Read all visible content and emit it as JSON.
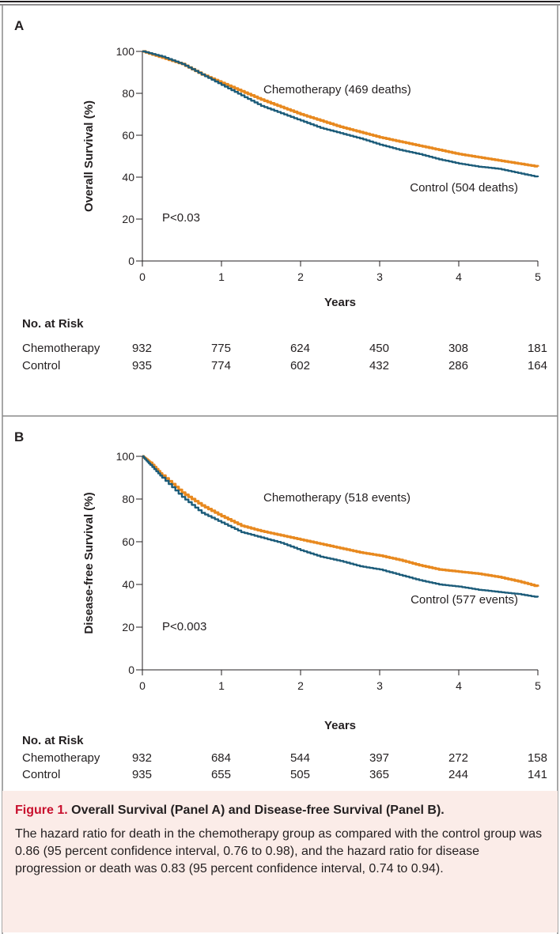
{
  "chart_data": [
    {
      "type": "line",
      "panel_label": "A",
      "ylabel": "Overall Survival (%)",
      "xlabel": "Years",
      "xlim": [
        0,
        5
      ],
      "ylim": [
        0,
        100
      ],
      "xticks": [
        0,
        1,
        2,
        3,
        4,
        5
      ],
      "yticks": [
        0,
        20,
        40,
        60,
        80,
        100
      ],
      "grid": false,
      "annotation": "P<0.03",
      "series": [
        {
          "name": "Chemotherapy (469 deaths)",
          "color": "#e8891f",
          "x": [
            0,
            0.25,
            0.5,
            0.75,
            1,
            1.25,
            1.5,
            1.75,
            2,
            2.25,
            2.5,
            2.75,
            3,
            3.25,
            3.5,
            3.75,
            4,
            4.25,
            4.5,
            4.75,
            5
          ],
          "y": [
            100,
            97,
            94,
            89,
            85,
            81,
            77,
            73.5,
            70,
            67,
            64,
            61.5,
            59,
            57,
            55,
            53,
            51,
            49.5,
            48,
            46.5,
            45
          ]
        },
        {
          "name": "Control (504 deaths)",
          "color": "#1c5c7a",
          "x": [
            0,
            0.25,
            0.5,
            0.75,
            1,
            1.25,
            1.5,
            1.75,
            2,
            2.25,
            2.5,
            2.75,
            3,
            3.25,
            3.5,
            3.75,
            4,
            4.25,
            4.5,
            4.75,
            5
          ],
          "y": [
            100,
            97.5,
            94,
            89,
            84,
            79,
            74,
            70.5,
            67,
            63.5,
            61,
            58.5,
            55.5,
            53,
            51,
            48.5,
            46.5,
            45,
            44,
            42,
            40
          ]
        }
      ],
      "at_risk": {
        "title": "No. at Risk",
        "rows": [
          {
            "label": "Chemotherapy",
            "values": [
              "932",
              "775",
              "624",
              "450",
              "308",
              "181"
            ]
          },
          {
            "label": "Control",
            "values": [
              "935",
              "774",
              "602",
              "432",
              "286",
              "164"
            ]
          }
        ]
      }
    },
    {
      "type": "line",
      "panel_label": "B",
      "ylabel": "Disease-free Survival (%)",
      "xlabel": "Years",
      "xlim": [
        0,
        5
      ],
      "ylim": [
        0,
        100
      ],
      "xticks": [
        0,
        1,
        2,
        3,
        4,
        5
      ],
      "yticks": [
        0,
        20,
        40,
        60,
        80,
        100
      ],
      "grid": false,
      "annotation": "P<0.003",
      "series": [
        {
          "name": "Chemotherapy (518 events)",
          "color": "#e8891f",
          "x": [
            0,
            0.1,
            0.25,
            0.5,
            0.75,
            1,
            1.25,
            1.5,
            1.75,
            2,
            2.25,
            2.5,
            2.75,
            3,
            3.25,
            3.5,
            3.75,
            4,
            4.25,
            4.5,
            4.75,
            5
          ],
          "y": [
            100,
            97,
            91,
            83,
            77,
            72,
            67.5,
            65,
            63,
            61,
            59,
            57,
            55,
            53.5,
            51.5,
            49,
            47,
            46,
            45,
            43.5,
            41.5,
            39
          ]
        },
        {
          "name": "Control (577 events)",
          "color": "#1c5c7a",
          "x": [
            0,
            0.1,
            0.25,
            0.5,
            0.75,
            1,
            1.25,
            1.5,
            1.75,
            2,
            2.25,
            2.5,
            2.75,
            3,
            3.25,
            3.5,
            3.75,
            4,
            4.25,
            4.5,
            4.75,
            5
          ],
          "y": [
            100,
            96,
            90,
            81,
            73.5,
            69,
            64.5,
            62,
            59.5,
            56,
            53,
            51,
            48.5,
            47,
            44.5,
            42,
            40,
            39,
            37.5,
            36.5,
            35.5,
            34
          ]
        }
      ],
      "at_risk": {
        "title": "No. at Risk",
        "rows": [
          {
            "label": "Chemotherapy",
            "values": [
              "932",
              "684",
              "544",
              "397",
              "272",
              "158"
            ]
          },
          {
            "label": "Control",
            "values": [
              "935",
              "655",
              "505",
              "365",
              "244",
              "141"
            ]
          }
        ]
      }
    }
  ],
  "caption": {
    "label": "Figure 1.",
    "title": "Overall Survival (Panel A) and Disease-free Survival (Panel B).",
    "text": "The hazard ratio for death in the chemotherapy group as compared with the control group was 0.86 (95 percent confidence interval, 0.76 to 0.98), and the hazard ratio for disease progression or death was 0.83 (95 percent confidence interval, 0.74 to 0.94)."
  }
}
